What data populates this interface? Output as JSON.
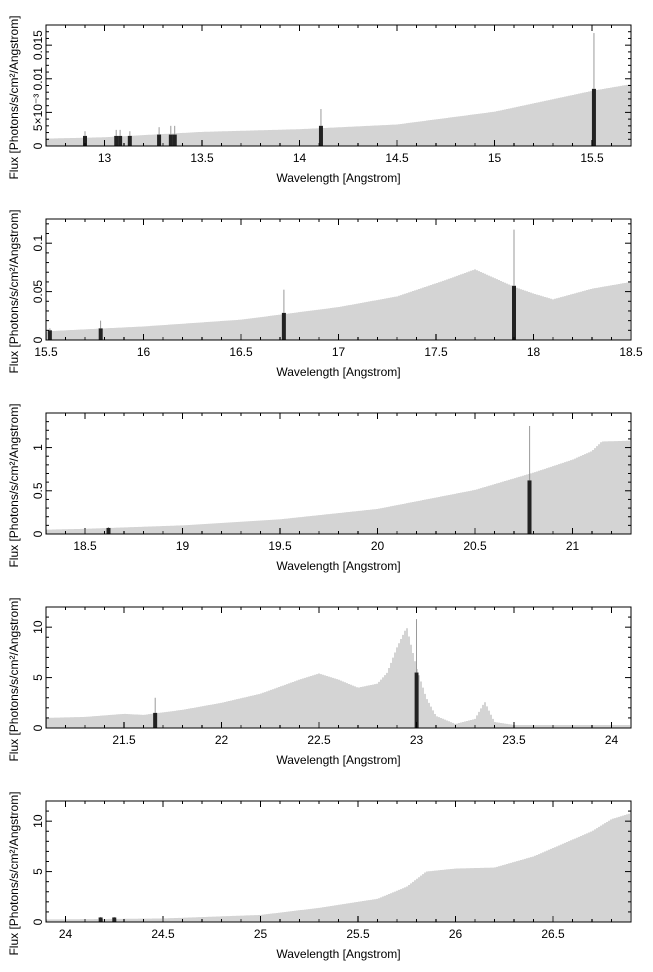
{
  "chart_data": [
    {
      "type": "bar",
      "xlabel": "Wavelength [Angstrom]",
      "ylabel": "Flux [Photons/s/cm²/Angstrom]",
      "xlim": [
        12.7,
        15.7
      ],
      "ylim": [
        0,
        0.018
      ],
      "xticks": [
        13,
        13.5,
        14,
        14.5,
        15,
        15.5
      ],
      "xtick_labels": [
        "13",
        "13.5",
        "14",
        "14.5",
        "15",
        "15.5"
      ],
      "yticks": [
        0,
        0.005,
        0.01,
        0.015
      ],
      "ytick_labels": [
        "0",
        "5×10⁻³",
        "0.01",
        "0.015"
      ],
      "continuum": [
        [
          12.7,
          0.0011
        ],
        [
          13.0,
          0.0013
        ],
        [
          13.5,
          0.0021
        ],
        [
          14.0,
          0.0025
        ],
        [
          14.5,
          0.0032
        ],
        [
          15.0,
          0.0051
        ],
        [
          15.5,
          0.0082
        ],
        [
          15.7,
          0.0092
        ]
      ],
      "lines": [
        {
          "x": 12.9,
          "y": 0.0015,
          "err": 0.0022
        },
        {
          "x": 13.06,
          "y": 0.0015,
          "err": 0.0024
        },
        {
          "x": 13.08,
          "y": 0.0015,
          "err": 0.0024
        },
        {
          "x": 13.13,
          "y": 0.0015,
          "err": 0.0022
        },
        {
          "x": 13.28,
          "y": 0.0017,
          "err": 0.0028
        },
        {
          "x": 13.34,
          "y": 0.0017,
          "err": 0.003
        },
        {
          "x": 13.36,
          "y": 0.0017,
          "err": 0.003
        },
        {
          "x": 14.11,
          "y": 0.003,
          "err": 0.0055
        },
        {
          "x": 15.51,
          "y": 0.0085,
          "err": 0.0168
        }
      ]
    },
    {
      "type": "bar",
      "xlabel": "Wavelength [Angstrom]",
      "ylabel": "Flux [Photons/s/cm²/Angstrom]",
      "xlim": [
        15.5,
        18.5
      ],
      "ylim": [
        0,
        0.125
      ],
      "xticks": [
        15.5,
        16,
        16.5,
        17,
        17.5,
        18,
        18.5
      ],
      "xtick_labels": [
        "15.5",
        "16",
        "16.5",
        "17",
        "17.5",
        "18",
        "18.5"
      ],
      "yticks": [
        0,
        0.05,
        0.1
      ],
      "ytick_labels": [
        "0",
        "0.05",
        "0.1"
      ],
      "continuum": [
        [
          15.5,
          0.009
        ],
        [
          16.0,
          0.014
        ],
        [
          16.5,
          0.021
        ],
        [
          17.0,
          0.034
        ],
        [
          17.3,
          0.045
        ],
        [
          17.55,
          0.062
        ],
        [
          17.7,
          0.073
        ],
        [
          17.8,
          0.064
        ],
        [
          17.9,
          0.055
        ],
        [
          18.0,
          0.048
        ],
        [
          18.1,
          0.042
        ],
        [
          18.3,
          0.053
        ],
        [
          18.5,
          0.06
        ]
      ],
      "lines": [
        {
          "x": 15.52,
          "y": 0.01,
          "err": 0.012
        },
        {
          "x": 15.78,
          "y": 0.012,
          "err": 0.02
        },
        {
          "x": 16.72,
          "y": 0.028,
          "err": 0.052
        },
        {
          "x": 17.9,
          "y": 0.056,
          "err": 0.114
        }
      ]
    },
    {
      "type": "bar",
      "xlabel": "Wavelength [Angstrom]",
      "ylabel": "Flux [Photons/s/cm²/Angstrom]",
      "xlim": [
        18.3,
        21.3
      ],
      "ylim": [
        0,
        1.4
      ],
      "xticks": [
        18.5,
        19,
        19.5,
        20,
        20.5,
        21
      ],
      "xtick_labels": [
        "18.5",
        "19",
        "19.5",
        "20",
        "20.5",
        "21"
      ],
      "yticks": [
        0,
        0.5,
        1
      ],
      "ytick_labels": [
        "0",
        "0.5",
        "1"
      ],
      "continuum": [
        [
          18.3,
          0.05
        ],
        [
          18.5,
          0.06
        ],
        [
          19.0,
          0.1
        ],
        [
          19.5,
          0.17
        ],
        [
          20.0,
          0.29
        ],
        [
          20.5,
          0.51
        ],
        [
          20.8,
          0.71
        ],
        [
          21.0,
          0.86
        ],
        [
          21.1,
          0.96
        ],
        [
          21.15,
          1.07
        ],
        [
          21.3,
          1.08
        ]
      ],
      "lines": [
        {
          "x": 18.62,
          "y": 0.07,
          "err": 0.08
        },
        {
          "x": 20.78,
          "y": 0.62,
          "err": 1.25
        }
      ]
    },
    {
      "type": "bar",
      "xlabel": "Wavelength [Angstrom]",
      "ylabel": "Flux [Photons/s/cm²/Angstrom]",
      "xlim": [
        21.1,
        24.1
      ],
      "ylim": [
        0,
        12
      ],
      "xticks": [
        21.5,
        22,
        22.5,
        23,
        23.5,
        24
      ],
      "xtick_labels": [
        "21.5",
        "22",
        "22.5",
        "23",
        "23.5",
        "24"
      ],
      "yticks": [
        0,
        5,
        10
      ],
      "ytick_labels": [
        "0",
        "5",
        "10"
      ],
      "continuum": [
        [
          21.1,
          1.0
        ],
        [
          21.3,
          1.1
        ],
        [
          21.5,
          1.4
        ],
        [
          21.6,
          1.3
        ],
        [
          21.8,
          1.8
        ],
        [
          22.0,
          2.5
        ],
        [
          22.2,
          3.4
        ],
        [
          22.4,
          4.8
        ],
        [
          22.5,
          5.4
        ],
        [
          22.6,
          4.8
        ],
        [
          22.7,
          4.0
        ],
        [
          22.8,
          4.4
        ],
        [
          22.85,
          5.5
        ],
        [
          22.9,
          8.0
        ],
        [
          22.95,
          10.0
        ],
        [
          23.0,
          6.0
        ],
        [
          23.05,
          3.0
        ],
        [
          23.1,
          1.2
        ],
        [
          23.2,
          0.4
        ],
        [
          23.3,
          0.9
        ],
        [
          23.35,
          2.6
        ],
        [
          23.4,
          0.6
        ],
        [
          23.5,
          0.3
        ],
        [
          24.1,
          0.3
        ]
      ],
      "lines": [
        {
          "x": 21.66,
          "y": 1.5,
          "err": 3.0
        },
        {
          "x": 23.0,
          "y": 5.5,
          "err": 10.8
        }
      ]
    },
    {
      "type": "bar",
      "xlabel": "Wavelength [Angstrom]",
      "ylabel": "Flux [Photons/s/cm²/Angstrom]",
      "xlim": [
        23.9,
        26.9
      ],
      "ylim": [
        0,
        12
      ],
      "xticks": [
        24,
        24.5,
        25,
        25.5,
        26,
        26.5
      ],
      "xtick_labels": [
        "24",
        "24.5",
        "25",
        "25.5",
        "26",
        "26.5"
      ],
      "yticks": [
        0,
        5,
        10
      ],
      "ytick_labels": [
        "0",
        "5",
        "10"
      ],
      "continuum": [
        [
          23.9,
          0.25
        ],
        [
          24.5,
          0.35
        ],
        [
          25.0,
          0.7
        ],
        [
          25.3,
          1.4
        ],
        [
          25.6,
          2.3
        ],
        [
          25.75,
          3.5
        ],
        [
          25.85,
          5.0
        ],
        [
          26.0,
          5.3
        ],
        [
          26.2,
          5.4
        ],
        [
          26.4,
          6.5
        ],
        [
          26.7,
          9.0
        ],
        [
          26.8,
          10.2
        ],
        [
          26.9,
          10.8
        ]
      ],
      "lines": [
        {
          "x": 24.18,
          "y": 0.45,
          "err": 0.5
        },
        {
          "x": 24.25,
          "y": 0.45,
          "err": 0.5
        }
      ]
    }
  ]
}
